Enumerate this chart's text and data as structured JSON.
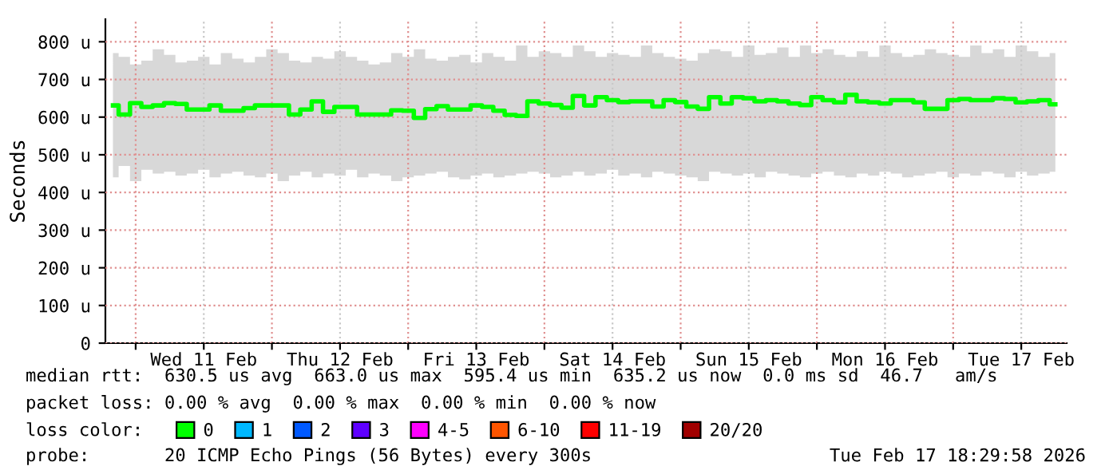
{
  "chart_data": {
    "type": "line",
    "ylabel": "Seconds",
    "x": [
      "2026-02-10T20:00",
      "2026-02-10T22:00",
      "2026-02-11T00:00",
      "2026-02-11T02:00",
      "2026-02-11T04:00",
      "2026-02-11T06:00",
      "2026-02-11T08:00",
      "2026-02-11T10:00",
      "2026-02-11T12:00",
      "2026-02-11T14:00",
      "2026-02-11T16:00",
      "2026-02-11T18:00",
      "2026-02-11T20:00",
      "2026-02-11T22:00",
      "2026-02-12T00:00",
      "2026-02-12T02:00",
      "2026-02-12T04:00",
      "2026-02-12T06:00",
      "2026-02-12T08:00",
      "2026-02-12T10:00",
      "2026-02-12T12:00",
      "2026-02-12T14:00",
      "2026-02-12T16:00",
      "2026-02-12T18:00",
      "2026-02-12T20:00",
      "2026-02-12T22:00",
      "2026-02-13T00:00",
      "2026-02-13T02:00",
      "2026-02-13T04:00",
      "2026-02-13T06:00",
      "2026-02-13T08:00",
      "2026-02-13T10:00",
      "2026-02-13T12:00",
      "2026-02-13T14:00",
      "2026-02-13T16:00",
      "2026-02-13T18:00",
      "2026-02-13T20:00",
      "2026-02-13T22:00",
      "2026-02-14T00:00",
      "2026-02-14T02:00",
      "2026-02-14T04:00",
      "2026-02-14T06:00",
      "2026-02-14T08:00",
      "2026-02-14T10:00",
      "2026-02-14T12:00",
      "2026-02-14T14:00",
      "2026-02-14T16:00",
      "2026-02-14T18:00",
      "2026-02-14T20:00",
      "2026-02-14T22:00",
      "2026-02-15T00:00",
      "2026-02-15T02:00",
      "2026-02-15T04:00",
      "2026-02-15T06:00",
      "2026-02-15T08:00",
      "2026-02-15T10:00",
      "2026-02-15T12:00",
      "2026-02-15T14:00",
      "2026-02-15T16:00",
      "2026-02-15T18:00",
      "2026-02-15T20:00",
      "2026-02-15T22:00",
      "2026-02-16T00:00",
      "2026-02-16T02:00",
      "2026-02-16T04:00",
      "2026-02-16T06:00",
      "2026-02-16T08:00",
      "2026-02-16T10:00",
      "2026-02-16T12:00",
      "2026-02-16T14:00",
      "2026-02-16T16:00",
      "2026-02-16T18:00",
      "2026-02-16T20:00",
      "2026-02-16T22:00",
      "2026-02-17T00:00",
      "2026-02-17T02:00",
      "2026-02-17T04:00",
      "2026-02-17T06:00",
      "2026-02-17T08:00",
      "2026-02-17T10:00",
      "2026-02-17T12:00",
      "2026-02-17T14:00",
      "2026-02-17T16:00",
      "2026-02-17T18:00"
    ],
    "series": [
      {
        "name": "0",
        "color": "#00ff00",
        "values": [
          631,
          607,
          637,
          627,
          631,
          637,
          635,
          620,
          620,
          631,
          617,
          617,
          624,
          631,
          631,
          631,
          607,
          620,
          642,
          614,
          627,
          627,
          607,
          607,
          607,
          618,
          617,
          598,
          621,
          629,
          620,
          620,
          631,
          627,
          617,
          606,
          603,
          642,
          636,
          632,
          625,
          656,
          631,
          653,
          645,
          640,
          642,
          642,
          628,
          645,
          640,
          628,
          622,
          653,
          636,
          653,
          650,
          642,
          645,
          642,
          636,
          632,
          653,
          645,
          639,
          659,
          642,
          639,
          636,
          645,
          645,
          639,
          622,
          622,
          645,
          648,
          645,
          645,
          650,
          648,
          639,
          642,
          645,
          634
        ],
        "lower": [
          440,
          470,
          430,
          460,
          450,
          455,
          445,
          450,
          460,
          440,
          450,
          455,
          445,
          440,
          450,
          430,
          445,
          455,
          440,
          450,
          445,
          460,
          440,
          450,
          445,
          430,
          440,
          445,
          450,
          455,
          440,
          435,
          445,
          450,
          440,
          445,
          450,
          455,
          450,
          440,
          445,
          455,
          445,
          450,
          460,
          445,
          450,
          440,
          455,
          450,
          445,
          440,
          430,
          455,
          450,
          445,
          450,
          440,
          455,
          450,
          445,
          440,
          450,
          455,
          445,
          440,
          450,
          445,
          455,
          450,
          440,
          445,
          450,
          455,
          440,
          450,
          445,
          455,
          450,
          440,
          455,
          445,
          450,
          455
        ],
        "upper": [
          770,
          760,
          740,
          750,
          780,
          765,
          745,
          750,
          760,
          740,
          770,
          755,
          745,
          760,
          780,
          770,
          750,
          745,
          760,
          755,
          775,
          760,
          750,
          740,
          745,
          770,
          760,
          780,
          755,
          750,
          760,
          765,
          745,
          770,
          760,
          750,
          790,
          760,
          775,
          770,
          760,
          790,
          775,
          760,
          770,
          765,
          760,
          790,
          770,
          760,
          755,
          750,
          770,
          780,
          775,
          760,
          790,
          765,
          770,
          785,
          760,
          790,
          770,
          780,
          765,
          760,
          775,
          760,
          790,
          770,
          760,
          765,
          780,
          770,
          765,
          760,
          790,
          770,
          780,
          760,
          790,
          775,
          760,
          770
        ]
      },
      {
        "name": "1",
        "color": "#00b8ff",
        "values": [
          null,
          null,
          null,
          null,
          null,
          null,
          null,
          null,
          null,
          null,
          null,
          null,
          null,
          null,
          null,
          null,
          null,
          null,
          null,
          null,
          null,
          null,
          null,
          null,
          null,
          null,
          null,
          null,
          null,
          null,
          null,
          null,
          null,
          null,
          null,
          null,
          null,
          null,
          null,
          null,
          null,
          null,
          null,
          null,
          null,
          null,
          null,
          null,
          null,
          null,
          null,
          null,
          null,
          null,
          null,
          null,
          null,
          null,
          null,
          null,
          null,
          null,
          null,
          null,
          null,
          null,
          null,
          null,
          null,
          null,
          null,
          null,
          null,
          null,
          null,
          null,
          null,
          null,
          null,
          null,
          null,
          null,
          null,
          null
        ]
      },
      {
        "name": "2",
        "color": "#0059ff",
        "values": [
          null,
          null,
          null,
          null,
          null,
          null,
          null,
          null,
          null,
          null,
          null,
          null,
          null,
          null,
          null,
          null,
          null,
          null,
          null,
          null,
          null,
          null,
          null,
          null,
          null,
          null,
          null,
          null,
          null,
          null,
          null,
          null,
          null,
          null,
          null,
          null,
          null,
          null,
          null,
          null,
          null,
          null,
          null,
          null,
          null,
          null,
          null,
          null,
          null,
          null,
          null,
          null,
          null,
          null,
          null,
          null,
          null,
          null,
          null,
          null,
          null,
          null,
          null,
          null,
          null,
          null,
          null,
          null,
          null,
          null,
          null,
          null,
          null,
          null,
          null,
          null,
          null,
          null,
          null,
          null,
          null,
          null,
          null,
          null
        ]
      },
      {
        "name": "3",
        "color": "#5e00ff",
        "values": [
          null,
          null,
          null,
          null,
          null,
          null,
          null,
          null,
          null,
          null,
          null,
          null,
          null,
          null,
          null,
          null,
          null,
          null,
          null,
          null,
          null,
          null,
          null,
          null,
          null,
          null,
          null,
          null,
          null,
          null,
          null,
          null,
          null,
          null,
          null,
          null,
          null,
          null,
          null,
          null,
          null,
          null,
          null,
          null,
          null,
          null,
          null,
          null,
          null,
          null,
          null,
          null,
          null,
          null,
          null,
          null,
          null,
          null,
          null,
          null,
          null,
          null,
          null,
          null,
          null,
          null,
          null,
          null,
          null,
          null,
          null,
          null,
          null,
          null,
          null,
          null,
          null,
          null,
          null,
          null,
          null,
          null,
          null,
          null
        ]
      },
      {
        "name": "4-5",
        "color": "#ff00ff",
        "values": [
          null,
          null,
          null,
          null,
          null,
          null,
          null,
          null,
          null,
          null,
          null,
          null,
          null,
          null,
          null,
          null,
          null,
          null,
          null,
          null,
          null,
          null,
          null,
          null,
          null,
          null,
          null,
          null,
          null,
          null,
          null,
          null,
          null,
          null,
          null,
          null,
          null,
          null,
          null,
          null,
          null,
          null,
          null,
          null,
          null,
          null,
          null,
          null,
          null,
          null,
          null,
          null,
          null,
          null,
          null,
          null,
          null,
          null,
          null,
          null,
          null,
          null,
          null,
          null,
          null,
          null,
          null,
          null,
          null,
          null,
          null,
          null,
          null,
          null,
          null,
          null,
          null,
          null,
          null,
          null,
          null,
          null,
          null,
          null
        ]
      },
      {
        "name": "6-10",
        "color": "#ff5500",
        "values": [
          null,
          null,
          null,
          null,
          null,
          null,
          null,
          null,
          null,
          null,
          null,
          null,
          null,
          null,
          null,
          null,
          null,
          null,
          null,
          null,
          null,
          null,
          null,
          null,
          null,
          null,
          null,
          null,
          null,
          null,
          null,
          null,
          null,
          null,
          null,
          null,
          null,
          null,
          null,
          null,
          null,
          null,
          null,
          null,
          null,
          null,
          null,
          null,
          null,
          null,
          null,
          null,
          null,
          null,
          null,
          null,
          null,
          null,
          null,
          null,
          null,
          null,
          null,
          null,
          null,
          null,
          null,
          null,
          null,
          null,
          null,
          null,
          null,
          null,
          null,
          null,
          null,
          null,
          null,
          null,
          null,
          null,
          null,
          null
        ]
      },
      {
        "name": "11-19",
        "color": "#ff0000",
        "values": [
          null,
          null,
          null,
          null,
          null,
          null,
          null,
          null,
          null,
          null,
          null,
          null,
          null,
          null,
          null,
          null,
          null,
          null,
          null,
          null,
          null,
          null,
          null,
          null,
          null,
          null,
          null,
          null,
          null,
          null,
          null,
          null,
          null,
          null,
          null,
          null,
          null,
          null,
          null,
          null,
          null,
          null,
          null,
          null,
          null,
          null,
          null,
          null,
          null,
          null,
          null,
          null,
          null,
          null,
          null,
          null,
          null,
          null,
          null,
          null,
          null,
          null,
          null,
          null,
          null,
          null,
          null,
          null,
          null,
          null,
          null,
          null,
          null,
          null,
          null,
          null,
          null,
          null,
          null,
          null,
          null,
          null,
          null,
          null
        ]
      },
      {
        "name": "20/20",
        "color": "#a10000",
        "values": [
          null,
          null,
          null,
          null,
          null,
          null,
          null,
          null,
          null,
          null,
          null,
          null,
          null,
          null,
          null,
          null,
          null,
          null,
          null,
          null,
          null,
          null,
          null,
          null,
          null,
          null,
          null,
          null,
          null,
          null,
          null,
          null,
          null,
          null,
          null,
          null,
          null,
          null,
          null,
          null,
          null,
          null,
          null,
          null,
          null,
          null,
          null,
          null,
          null,
          null,
          null,
          null,
          null,
          null,
          null,
          null,
          null,
          null,
          null,
          null,
          null,
          null,
          null,
          null,
          null,
          null,
          null,
          null,
          null,
          null,
          null,
          null,
          null,
          null,
          null,
          null,
          null,
          null,
          null,
          null,
          null,
          null,
          null,
          null
        ]
      }
    ],
    "legend": "bottom",
    "legend_title": "loss color:",
    "xlim": [
      "2026-02-10T18:40",
      "2026-02-17T20:00"
    ],
    "xticks": [
      {
        "value": "2026-02-11T00:00",
        "label": null
      },
      {
        "value": "2026-02-11T12:00",
        "label": "Wed 11 Feb"
      },
      {
        "value": "2026-02-12T00:00",
        "label": null
      },
      {
        "value": "2026-02-12T12:00",
        "label": "Thu 12 Feb"
      },
      {
        "value": "2026-02-13T00:00",
        "label": null
      },
      {
        "value": "2026-02-13T12:00",
        "label": "Fri 13 Feb"
      },
      {
        "value": "2026-02-14T00:00",
        "label": null
      },
      {
        "value": "2026-02-14T12:00",
        "label": "Sat 14 Feb"
      },
      {
        "value": "2026-02-15T00:00",
        "label": null
      },
      {
        "value": "2026-02-15T12:00",
        "label": "Sun 15 Feb"
      },
      {
        "value": "2026-02-16T00:00",
        "label": null
      },
      {
        "value": "2026-02-16T12:00",
        "label": "Mon 16 Feb"
      },
      {
        "value": "2026-02-17T00:00",
        "label": null
      },
      {
        "value": "2026-02-17T12:00",
        "label": "Tue 17 Feb"
      }
    ],
    "ylim": [
      0,
      860
    ],
    "yticks": [
      0,
      {
        "value": 100,
        "label": "100 u"
      },
      {
        "value": 200,
        "label": "200 u"
      },
      {
        "value": 300,
        "label": "300 u"
      },
      {
        "value": 400,
        "label": "400 u"
      },
      {
        "value": 500,
        "label": "500 u"
      },
      {
        "value": 600,
        "label": "600 u"
      },
      {
        "value": 700,
        "label": "700 u"
      },
      {
        "value": 800,
        "label": "800 u"
      }
    ],
    "grid": true,
    "line_style": "solid",
    "marker": "none",
    "annotations": [
      "median rtt:  630.5 us avg  663.0 us max  595.4 us min  635.2 us now  0.0 ms sd  46.7   am/s",
      "packet loss: 0.00 % avg  0.00 % max  0.00 % min  0.00 % now",
      "probe:       20 ICMP Echo Pings (56 Bytes) every 300s",
      "Tue Feb 17 18:29:58 2026"
    ]
  }
}
